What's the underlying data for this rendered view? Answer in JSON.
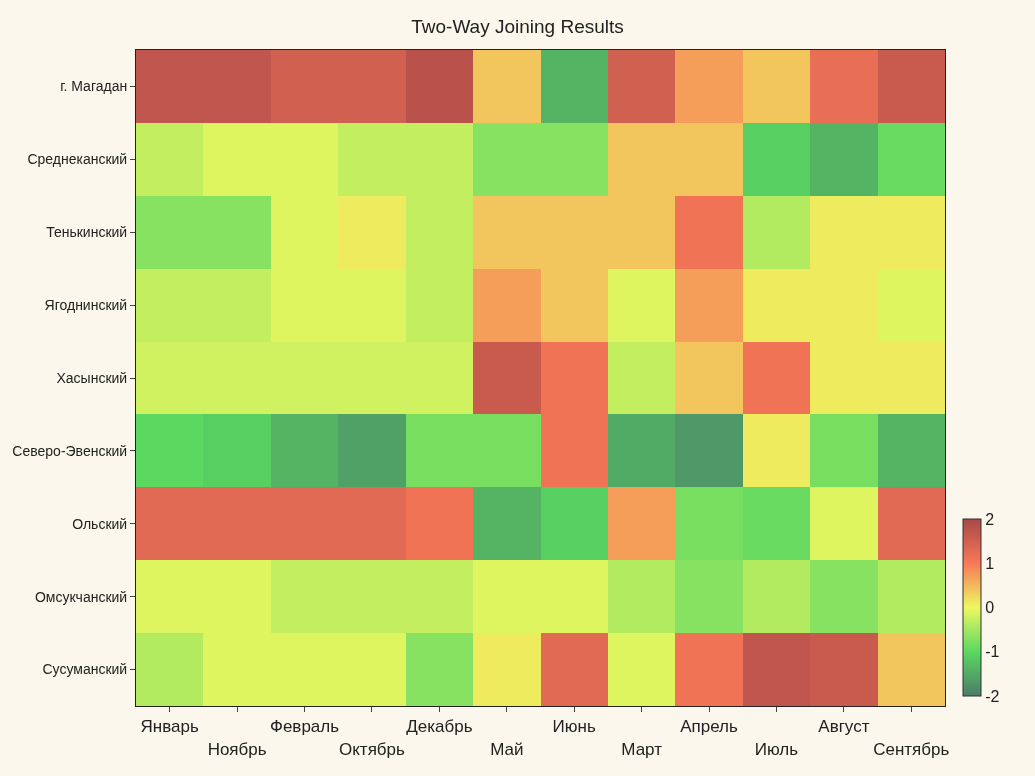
{
  "chart_data": {
    "type": "heatmap",
    "title": "Two-Way Joining Results",
    "categories": [
      "Январь",
      "Ноябрь",
      "Февраль",
      "Октябрь",
      "Декабрь",
      "Май",
      "Июнь",
      "Март",
      "Апрель",
      "Июль",
      "Август",
      "Сентябрь"
    ],
    "y_categories": [
      "г. Магадан",
      "Среднеканский",
      "Тенькинский",
      "Ягоднинский",
      "Хасынский",
      "Северо-Эвенский",
      "Ольский",
      "Омсукчанский",
      "Сусуманский"
    ],
    "cells": [
      [
        1.7,
        1.7,
        1.5,
        1.5,
        1.8,
        0.4,
        -1.4,
        1.5,
        0.7,
        0.4,
        1.2,
        1.6
      ],
      [
        -0.3,
        -0.1,
        -0.1,
        -0.3,
        -0.3,
        -0.7,
        -0.7,
        0.4,
        0.4,
        -1.1,
        -1.4,
        -0.9
      ],
      [
        -0.7,
        -0.7,
        -0.1,
        0.1,
        -0.3,
        0.4,
        0.4,
        0.4,
        1.1,
        -0.4,
        0.1,
        0.1
      ],
      [
        -0.3,
        -0.3,
        -0.1,
        -0.1,
        -0.3,
        0.7,
        0.4,
        -0.1,
        0.7,
        0.1,
        0.1,
        -0.1
      ],
      [
        -0.2,
        -0.2,
        -0.2,
        -0.2,
        -0.2,
        1.6,
        1.1,
        -0.3,
        0.4,
        1.1,
        0.1,
        0.1
      ],
      [
        -1.0,
        -1.1,
        -1.4,
        -1.6,
        -0.8,
        -0.8,
        1.1,
        -1.5,
        -1.7,
        0.1,
        -0.8,
        -1.4
      ],
      [
        1.3,
        1.3,
        1.3,
        1.3,
        1.1,
        -1.4,
        -1.1,
        0.7,
        -0.8,
        -0.9,
        -0.1,
        1.3
      ],
      [
        -0.1,
        -0.1,
        -0.3,
        -0.3,
        -0.3,
        -0.1,
        -0.1,
        -0.4,
        -0.7,
        -0.4,
        -0.7,
        -0.4
      ],
      [
        -0.4,
        -0.1,
        -0.1,
        -0.1,
        -0.7,
        0.1,
        1.3,
        -0.1,
        1.1,
        1.7,
        1.6,
        0.4
      ]
    ],
    "clim": [
      -2,
      2
    ],
    "cticks": [
      -2,
      -1,
      0,
      1,
      2
    ],
    "colors": [
      "#4a7d6a",
      "#5ad860",
      "#eef860",
      "#f87858",
      "#a84848"
    ]
  }
}
